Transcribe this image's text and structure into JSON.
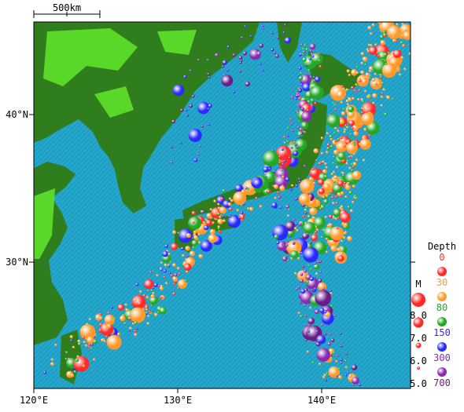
{
  "map": {
    "scale_bar": "500km",
    "lat_labels": [
      {
        "value": 40,
        "label": "40°N"
      },
      {
        "value": 30,
        "label": "30°N"
      }
    ],
    "lon_labels": [
      {
        "value": 120,
        "label": "120°E"
      },
      {
        "value": 130,
        "label": "130°E"
      },
      {
        "value": 140,
        "label": "140°E"
      }
    ],
    "legend": {
      "depth_title": "Depth",
      "depths": [
        {
          "label": "0",
          "color": "#ff2a2a"
        },
        {
          "label": "30",
          "color": "#ff9a2a"
        },
        {
          "label": "80",
          "color": "#22a822"
        },
        {
          "label": "150",
          "color": "#2a2aff"
        },
        {
          "label": "300",
          "color": "#8a2ab0"
        },
        {
          "label": "700",
          "color": "#6a1a8a"
        }
      ],
      "magnitude_title": "M",
      "magnitudes": [
        "8.0",
        "7.0",
        "6.0",
        "5.0"
      ]
    }
  }
}
